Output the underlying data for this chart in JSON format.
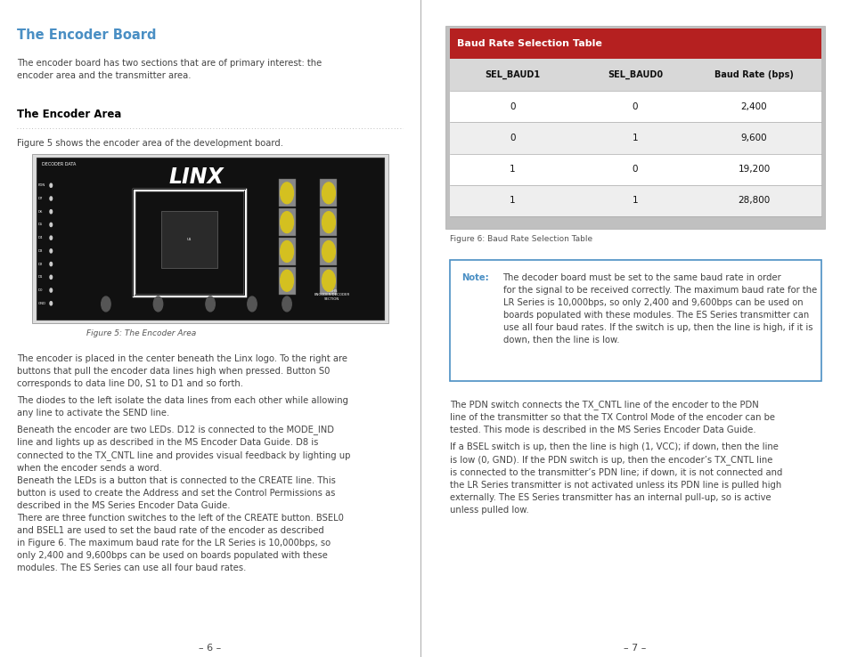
{
  "page_bg": "#ffffff",
  "left_panel": {
    "title": "The Encoder Board",
    "title_color": "#4a8fc4",
    "intro_text": "The encoder board has two sections that are of primary interest: the\nencoder area and the transmitter area.",
    "section_title": "The Encoder Area",
    "section_intro": "Figure 5 shows the encoder area of the development board.",
    "figure_caption": "Figure 5: The Encoder Area",
    "body_paragraphs": [
      "The encoder is placed in the center beneath the Linx logo. To the right are\nbuttons that pull the encoder data lines high when pressed. Button S0\ncorresponds to data line D0, S1 to D1 and so forth.",
      "The diodes to the left isolate the data lines from each other while allowing\nany line to activate the SEND line.",
      "Beneath the encoder are two LEDs. D12 is connected to the MODE_IND\nline and lights up as described in the MS Encoder Data Guide. D8 is\nconnected to the TX_CNTL line and provides visual feedback by lighting up\nwhen the encoder sends a word.",
      "Beneath the LEDs is a button that is connected to the CREATE line. This\nbutton is used to create the Address and set the Control Permissions as\ndescribed in the MS Series Encoder Data Guide.",
      "There are three function switches to the left of the CREATE button. BSEL0\nand BSEL1 are used to set the baud rate of the encoder as described\nin Figure 6. The maximum baud rate for the LR Series is 10,000bps, so\nonly 2,400 and 9,600bps can be used on boards populated with these\nmodules. The ES Series can use all four baud rates."
    ],
    "page_number": "– 6 –"
  },
  "right_panel": {
    "table_outer_bg": "#c8c8c8",
    "table_title": "Baud Rate Selection Table",
    "table_title_bg": "#b52020",
    "table_title_color": "#ffffff",
    "table_header_bg": "#d8d8d8",
    "col_headers": [
      "SEL_BAUD1",
      "SEL_BAUD0",
      "Baud Rate (bps)"
    ],
    "table_rows": [
      [
        "0",
        "0",
        "2,400"
      ],
      [
        "0",
        "1",
        "9,600"
      ],
      [
        "1",
        "0",
        "19,200"
      ],
      [
        "1",
        "1",
        "28,800"
      ]
    ],
    "row_bg_alt": [
      "#ffffff",
      "#eeeeee",
      "#ffffff",
      "#eeeeee"
    ],
    "figure_caption": "Figure 6: Baud Rate Selection Table",
    "note_border": "#4a8fc4",
    "note_bg": "#ffffff",
    "note_label": "Note:",
    "note_label_color": "#4a8fc4",
    "note_body": "The decoder board must be set to the same baud rate in order\nfor the signal to be received correctly. The maximum baud rate for the\nLR Series is 10,000bps, so only 2,400 and 9,600bps can be used on\nboards populated with these modules. The ES Series transmitter can\nuse all four baud rates. If the switch is up, then the line is high, if it is\ndown, then the line is low.",
    "body_paragraphs": [
      "The PDN switch connects the TX_CNTL line of the encoder to the PDN\nline of the transmitter so that the TX Control Mode of the encoder can be\ntested. This mode is described in the MS Series Encoder Data Guide.",
      "If a BSEL switch is up, then the line is high (1, VCC); if down, then the line\nis low (0, GND). If the PDN switch is up, then the encoder’s TX_CNTL line\nis connected to the transmitter’s PDN line; if down, it is not connected and\nthe LR Series transmitter is not activated unless its PDN line is pulled high\nexternally. The ES Series transmitter has an internal pull-up, so is active\nunless pulled low."
    ],
    "page_number": "– 7 –"
  },
  "divider_color": "#aaaaaa",
  "body_text_color": "#444444",
  "body_font_size": 7.2,
  "caption_color": "#555555",
  "caption_font_size": 6.5,
  "title_font_size": 10.5,
  "section_title_font_size": 8.5
}
